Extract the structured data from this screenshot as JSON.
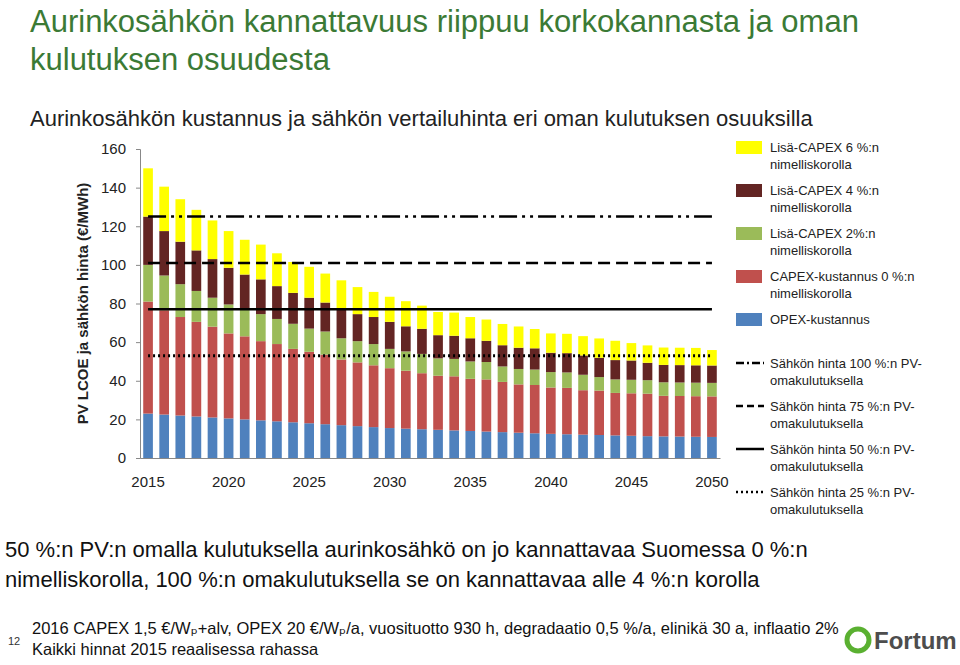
{
  "chart_data": {
    "type": "bar",
    "title": "Aurinkosähkön kannattavuus riippuu korkokannasta ja oman kulutuksen osuudesta",
    "subtitle": "Aurinkosähkön kustannus ja sähkön vertailuhinta eri oman kulutuksen osuuksilla",
    "ylabel": "PV LCOE ja sähkön hinta (€/MWh)",
    "categories": [
      2015,
      null,
      null,
      null,
      null,
      2020,
      null,
      null,
      null,
      null,
      2025,
      null,
      null,
      null,
      null,
      2030,
      null,
      null,
      null,
      null,
      2035,
      null,
      null,
      null,
      null,
      2040,
      null,
      null,
      null,
      null,
      2045,
      null,
      null,
      null,
      null,
      2050
    ],
    "stacked": true,
    "grid": false,
    "legend": "right",
    "ylim": [
      0,
      160
    ],
    "yticks": [
      0,
      20,
      40,
      60,
      80,
      100,
      120,
      140,
      160
    ],
    "series": [
      {
        "name": "OPEX-kustannus",
        "type": "bar",
        "color": "#4f81bd",
        "values": [
          23,
          22.5,
          22,
          21.5,
          21,
          20.5,
          20,
          19.5,
          19,
          18.5,
          18,
          17.5,
          17,
          16.5,
          16,
          15.5,
          15.2,
          14.9,
          14.6,
          14.3,
          14,
          13.7,
          13.4,
          13.1,
          12.8,
          12.5,
          12.3,
          12.1,
          11.9,
          11.7,
          11.5,
          11.3,
          11.2,
          11.1,
          11,
          10.9
        ]
      },
      {
        "name": "CAPEX-kustannus 0 %:n nimelliskorolla",
        "type": "bar",
        "color": "#c0504d",
        "values": [
          58,
          54,
          51,
          49,
          47,
          44,
          43,
          41,
          40,
          38,
          37,
          36,
          34,
          33,
          32,
          31,
          30,
          29,
          28,
          28,
          27,
          27,
          26,
          25,
          25,
          24,
          24,
          23,
          23,
          22,
          22,
          22,
          21,
          21,
          21,
          21
        ]
      },
      {
        "name": "Lisä-CAPEX 2%:n nimelliskorolla",
        "type": "bar",
        "color": "#9bbb59",
        "values": [
          19,
          18,
          17,
          16,
          15,
          15,
          14,
          14,
          13,
          13,
          12,
          12,
          11,
          11,
          11,
          10,
          10,
          10,
          9,
          9,
          9,
          9,
          8,
          8,
          8,
          8,
          8,
          8,
          7,
          7,
          7,
          7,
          7,
          7,
          7,
          7
        ]
      },
      {
        "name": "Lisä-CAPEX 4 %:n nimelliskorolla",
        "type": "bar",
        "color": "#632523",
        "values": [
          25,
          23,
          22,
          21,
          20,
          19,
          18,
          18,
          17,
          16,
          16,
          15,
          15,
          14,
          14,
          14,
          13,
          13,
          12,
          12,
          12,
          11,
          11,
          11,
          11,
          10,
          10,
          10,
          10,
          10,
          10,
          9,
          9,
          9,
          9,
          9
        ]
      },
      {
        "name": "Lisä-CAPEX 6 %:n nimelliskorolla",
        "type": "bar",
        "color": "#ffff00",
        "values": [
          25,
          23,
          22,
          21,
          20,
          19,
          18,
          18,
          17,
          16,
          16,
          15,
          15,
          14,
          13,
          13,
          13,
          12,
          12,
          12,
          11,
          11,
          11,
          11,
          10,
          10,
          10,
          10,
          10,
          10,
          9,
          9,
          9,
          9,
          9,
          8
        ]
      },
      {
        "name": "Sähkön hinta 100 %:n PV-omakulutuksella",
        "type": "line",
        "color": "#000000",
        "line_style": "dashdotdot",
        "values": [
          125,
          125,
          125,
          125,
          125,
          125,
          125,
          125,
          125,
          125,
          125,
          125,
          125,
          125,
          125,
          125,
          125,
          125,
          125,
          125,
          125,
          125,
          125,
          125,
          125,
          125,
          125,
          125,
          125,
          125,
          125,
          125,
          125,
          125,
          125,
          125
        ]
      },
      {
        "name": "Sähkön hinta 75 %:n PV-omakulutuksella",
        "type": "line",
        "color": "#000000",
        "line_style": "dashed",
        "values": [
          101,
          101,
          101,
          101,
          101,
          101,
          101,
          101,
          101,
          101,
          101,
          101,
          101,
          101,
          101,
          101,
          101,
          101,
          101,
          101,
          101,
          101,
          101,
          101,
          101,
          101,
          101,
          101,
          101,
          101,
          101,
          101,
          101,
          101,
          101,
          101
        ]
      },
      {
        "name": "Sähkön hinta 50 %:n PV-omakulutuksella",
        "type": "line",
        "color": "#000000",
        "line_style": "solid",
        "values": [
          77,
          77,
          77,
          77,
          77,
          77,
          77,
          77,
          77,
          77,
          77,
          77,
          77,
          77,
          77,
          77,
          77,
          77,
          77,
          77,
          77,
          77,
          77,
          77,
          77,
          77,
          77,
          77,
          77,
          77,
          77,
          77,
          77,
          77,
          77,
          77
        ]
      },
      {
        "name": "Sähkön hinta 25 %:n PV-omakulutuksella",
        "type": "line",
        "color": "#000000",
        "line_style": "dotted",
        "values": [
          53,
          53,
          53,
          53,
          53,
          53,
          53,
          53,
          53,
          53,
          53,
          53,
          53,
          53,
          53,
          53,
          53,
          53,
          53,
          53,
          53,
          53,
          53,
          53,
          53,
          53,
          53,
          53,
          53,
          53,
          53,
          53,
          53,
          53,
          53,
          53
        ]
      }
    ],
    "annotations": [
      "50 %:n PV:n omalla kulutuksella aurinkosähkö on jo kannattavaa Suomessa 0 %:n nimelliskorolla, 100 %:n omakulutuksella se on kannattavaa alle 4 %:n korolla",
      "2016 CAPEX 1,5 €/Wₚ+alv, OPEX 20 €/Wₚ/a, vuosituotto 930 h, degradaatio 0,5 %/a, elinikä 30 a, inflaatio 2%",
      "Kaikki hinnat 2015 reaalisessa rahassa",
      "12",
      "Fortum"
    ]
  }
}
